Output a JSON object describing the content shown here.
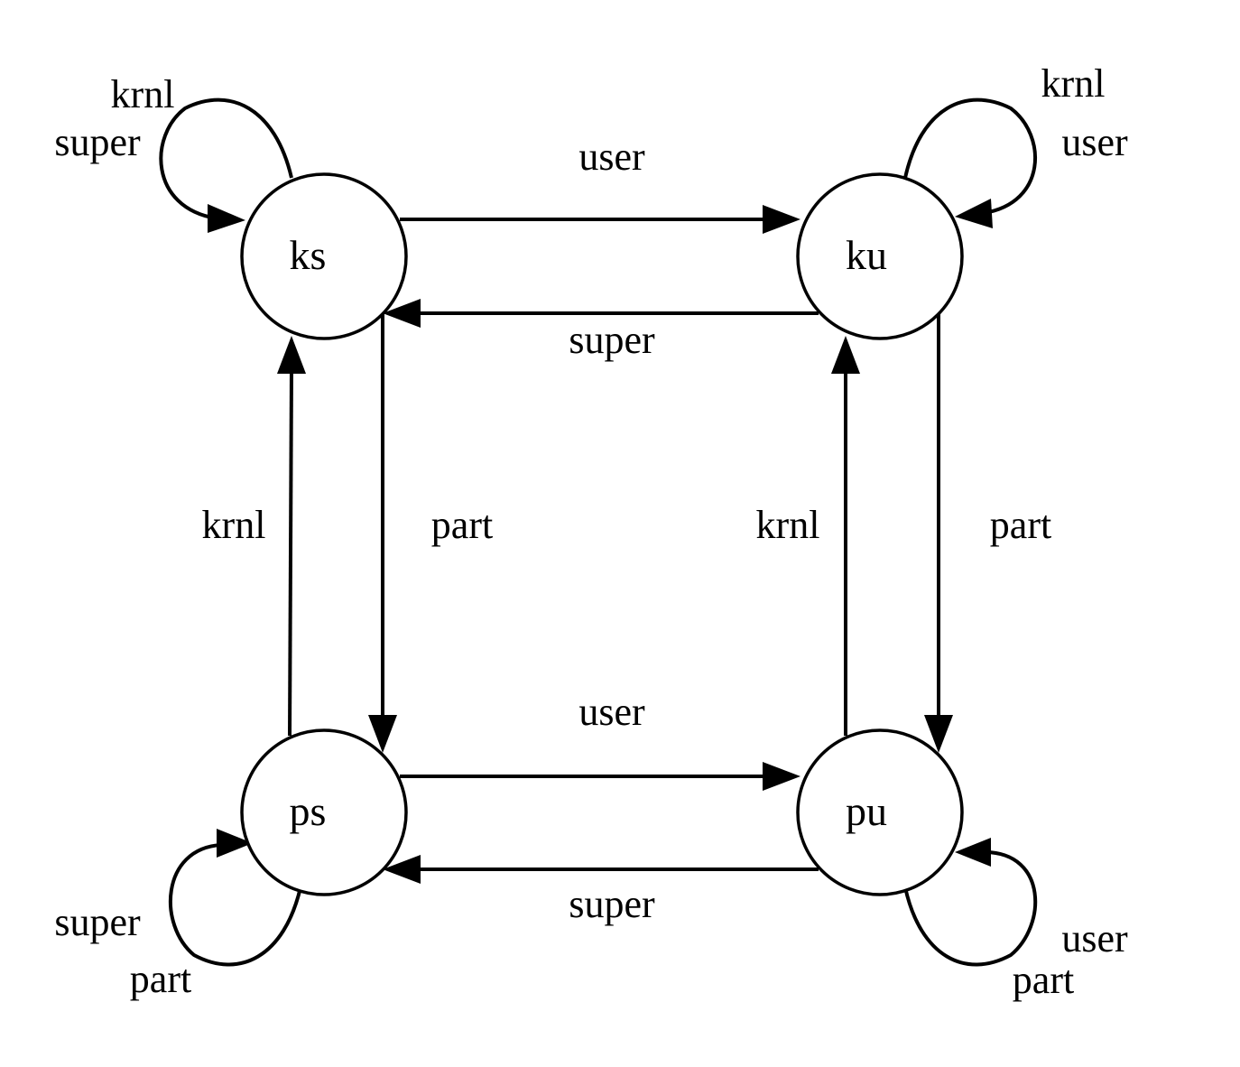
{
  "nodes": {
    "ks": "ks",
    "ku": "ku",
    "ps": "ps",
    "pu": "pu"
  },
  "edges": {
    "ks_to_ku": "user",
    "ku_to_ks": "super",
    "ps_to_pu": "user",
    "pu_to_ps": "super",
    "ps_to_ks": "krnl",
    "ks_to_ps": "part",
    "pu_to_ku": "krnl",
    "ku_to_pu": "part"
  },
  "self_loops": {
    "ks": [
      "krnl",
      "super"
    ],
    "ku": [
      "krnl",
      "user"
    ],
    "ps": [
      "super",
      "part"
    ],
    "pu": [
      "user",
      "part"
    ]
  }
}
